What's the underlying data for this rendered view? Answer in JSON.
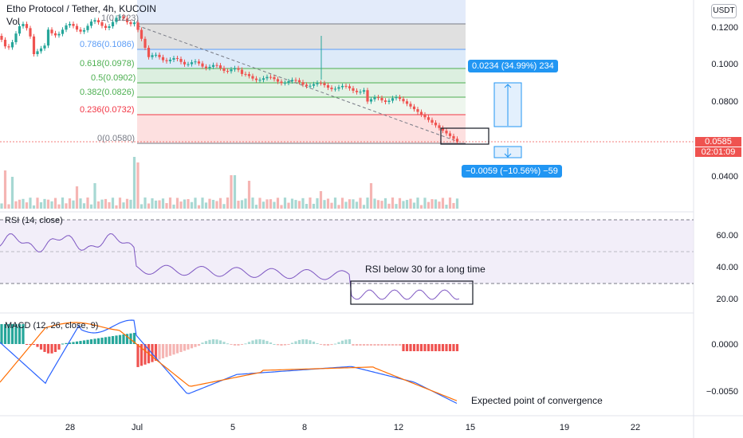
{
  "header": {
    "title": "Etho Protocol / Tether, 4h, KUCOIN",
    "vol_label": "Vol",
    "currency_button": "USDT"
  },
  "fib_levels": [
    {
      "label": "1(0.1223)",
      "color": "#787b86"
    },
    {
      "label": "0.786(0.1086)",
      "color": "#5b9cf6"
    },
    {
      "label": "0.618(0.0978)",
      "color": "#4caf50"
    },
    {
      "label": "0.5(0.0902)",
      "color": "#4caf50"
    },
    {
      "label": "0.382(0.0826)",
      "color": "#4caf50"
    },
    {
      "label": "0.236(0.0732)",
      "color": "#f23645"
    },
    {
      "label": "0(0.0580)",
      "color": "#787b86"
    }
  ],
  "price_axis": [
    "0.1200",
    "0.1000",
    "0.0800",
    "0.0400"
  ],
  "current_price": {
    "value": "0.0585",
    "countdown": "02:01:09",
    "color": "#ef5350"
  },
  "measure_up": "0.0234 (34.99%) 234",
  "measure_down": "−0.0059 (−10.56%) −59",
  "rsi": {
    "label": "RSI (14, close)",
    "axis": [
      "60.00",
      "40.00",
      "20.00"
    ],
    "note": "RSI below 30 for a long time"
  },
  "macd": {
    "label": "MACD (12, 26, close, 9)",
    "axis": [
      "0.0000",
      "−0.0050"
    ],
    "note": "Expected point of convergence"
  },
  "x_axis": [
    "28",
    "Jul",
    "5",
    "8",
    "12",
    "15",
    "19",
    "22"
  ]
}
